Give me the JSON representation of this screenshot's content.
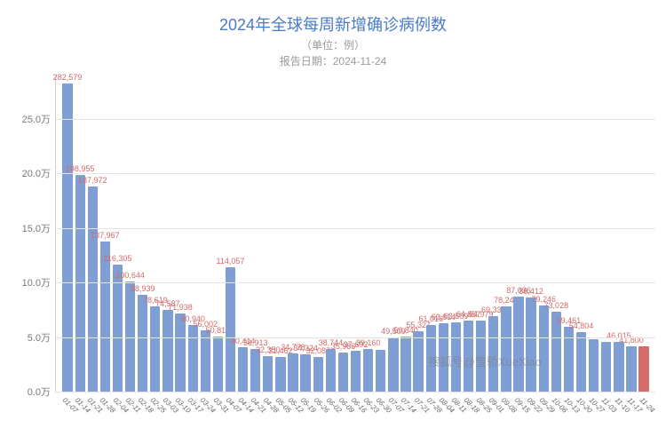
{
  "chart": {
    "type": "bar",
    "title": "2024年全球每周新增确诊病例数",
    "subtitle": "（单位：例）",
    "report_date_prefix": "报告日期：",
    "report_date": "2024-11-24",
    "title_color": "#4a7bc8",
    "subtitle_color": "#999999",
    "title_fontsize": 18,
    "subtitle_fontsize": 12,
    "background_color": "#ffffff",
    "grid_color": "#e6e6e6",
    "axis_color": "#cccccc",
    "bar_color": "#7f9fd4",
    "last_bar_color": "#d46a6a",
    "value_label_color": "#d46a6a",
    "value_label_fontsize": 9,
    "x_label_fontsize": 8,
    "x_label_rotation_deg": 45,
    "y_tick_label_color": "#7a7a7a",
    "y_axis": {
      "min": 0,
      "max": 290000,
      "ticks": [
        {
          "v": 0,
          "label": "0.0万"
        },
        {
          "v": 50000,
          "label": "5.0万"
        },
        {
          "v": 100000,
          "label": "10.0万"
        },
        {
          "v": 150000,
          "label": "15.0万"
        },
        {
          "v": 200000,
          "label": "20.0万"
        },
        {
          "v": 250000,
          "label": "25.0万"
        }
      ]
    },
    "categories": [
      "01-07",
      "01-14",
      "01-21",
      "01-28",
      "02-04",
      "02-11",
      "02-18",
      "02-25",
      "03-03",
      "03-10",
      "03-17",
      "03-24",
      "03-31",
      "04-07",
      "04-14",
      "04-21",
      "04-28",
      "05-05",
      "05-12",
      "05-19",
      "05-26",
      "06-02",
      "06-09",
      "06-16",
      "06-23",
      "06-30",
      "07-07",
      "07-14",
      "07-21",
      "07-28",
      "08-04",
      "08-11",
      "08-18",
      "08-25",
      "09-01",
      "09-08",
      "09-15",
      "09-22",
      "09-29",
      "10-06",
      "10-13",
      "10-20",
      "10-27",
      "11-03",
      "11-10",
      "11-17",
      "11-24"
    ],
    "values": [
      282579,
      198955,
      187972,
      137967,
      116305,
      100644,
      88939,
      78619,
      74587,
      71938,
      60940,
      56002,
      50817,
      114057,
      40414,
      38913,
      32350,
      31462,
      34778,
      34324,
      32087,
      38744,
      35986,
      37692,
      39160,
      38500,
      49509,
      50840,
      55327,
      61016,
      62614,
      63609,
      64857,
      64979,
      69336,
      78242,
      87036,
      86412,
      79246,
      73028,
      59461,
      54804,
      48000,
      46000,
      46015,
      41800,
      41800
    ],
    "value_labels": [
      "282,579",
      "198,955",
      "187,972",
      "137,967",
      "116,305",
      "100,644",
      "88,939",
      "78,619",
      "74,587",
      "71,938",
      "60,940",
      "56,002",
      "50,817",
      "114,057",
      "40,414",
      "38,913",
      "32,350",
      "31,462",
      "34,778",
      "34,324",
      "32,087",
      "38,744",
      "35,986",
      "37,692",
      "39,160",
      "",
      "49,509",
      "50,840",
      "55,327",
      "61,016",
      "62,614",
      "63,609",
      "64,857",
      "64,979",
      "69,336",
      "78,242",
      "87,036",
      "86,412",
      "79,246",
      "73,028",
      "59,461",
      "54,804",
      "",
      "",
      "46,015",
      "41,800",
      ""
    ]
  },
  "watermark": "搜狐号@雪骄XueXiao"
}
